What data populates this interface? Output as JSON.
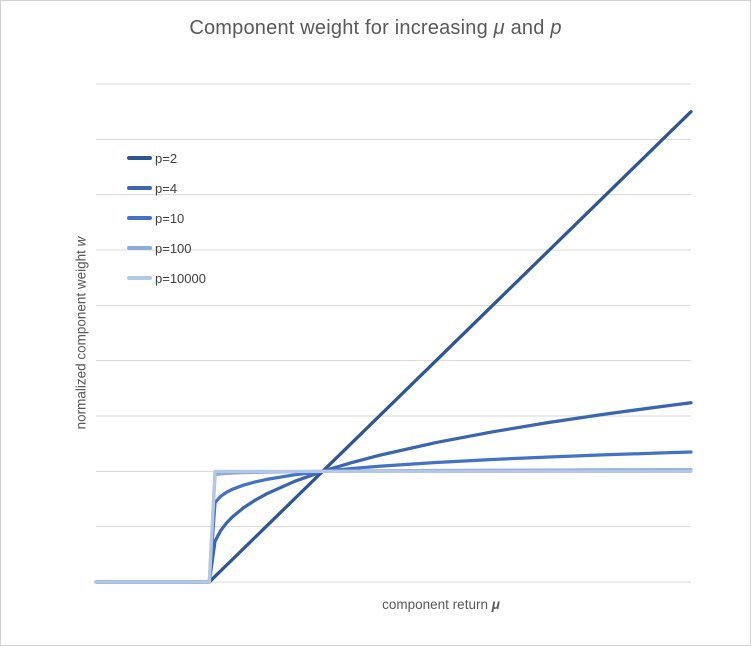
{
  "chart": {
    "title": {
      "prefix": "Component weight for increasing ",
      "mu": "μ",
      "mid": " and ",
      "p": "p"
    },
    "x_axis_label": {
      "prefix": "component return ",
      "symbol": "μ"
    },
    "y_axis_label": {
      "prefix": "normalized component weight ",
      "symbol": "w"
    }
  },
  "chart_data": {
    "type": "line",
    "title": "Component weight for increasing μ and p",
    "xlabel": "component return μ",
    "ylabel": "normalized component weight w",
    "xlim": [
      -1,
      4.25
    ],
    "ylim": [
      0,
      4.5
    ],
    "grid": {
      "y_step": 0.5,
      "color": "#d9d9d9",
      "vertical": false
    },
    "legend_position": "inside-top-left",
    "axis_tick_labels": "none",
    "line_width": 3.25,
    "x": [
      -1,
      -0.5,
      0,
      0.05,
      0.1,
      0.15,
      0.2,
      0.3,
      0.4,
      0.5,
      0.75,
      1,
      1.25,
      1.5,
      2,
      2.5,
      3,
      3.5,
      4,
      4.25
    ],
    "series": [
      {
        "name": "p=2",
        "color": "#2e5693",
        "values": [
          0,
          0,
          0,
          0.05,
          0.1,
          0.15,
          0.2,
          0.3,
          0.4,
          0.5,
          0.75,
          1,
          1.25,
          1.5,
          2,
          2.5,
          3,
          3.5,
          4,
          4.25
        ]
      },
      {
        "name": "p=4",
        "color": "#3a66b0",
        "values": [
          0,
          0,
          0,
          0.3684,
          0.4642,
          0.5313,
          0.5848,
          0.6694,
          0.7368,
          0.7937,
          0.9086,
          1,
          1.0772,
          1.1447,
          1.2599,
          1.3572,
          1.4422,
          1.5183,
          1.5874,
          1.6198
        ]
      },
      {
        "name": "p=10",
        "color": "#4472c4",
        "values": [
          0,
          0,
          0,
          0.7169,
          0.7743,
          0.8099,
          0.8363,
          0.8748,
          0.9032,
          0.9259,
          0.9685,
          1,
          1.0251,
          1.0461,
          1.0801,
          1.1072,
          1.1298,
          1.1494,
          1.1665,
          1.1744
        ]
      },
      {
        "name": "p=100",
        "color": "#8faadc",
        "values": [
          0,
          0,
          0,
          0.9702,
          0.977,
          0.981,
          0.9839,
          0.9879,
          0.9908,
          0.993,
          0.9971,
          1,
          1.0023,
          1.0041,
          1.007,
          1.0093,
          1.0111,
          1.0127,
          1.0141,
          1.0147
        ]
      },
      {
        "name": "p=10000",
        "color": "#b4c7e7",
        "values": [
          0,
          0,
          0,
          0.9997,
          0.9998,
          0.9998,
          0.9998,
          0.9999,
          0.9999,
          0.9999,
          1,
          1,
          1,
          1,
          1.0001,
          1.0001,
          1.0001,
          1.0001,
          1.0001,
          1.0001
        ]
      }
    ]
  }
}
